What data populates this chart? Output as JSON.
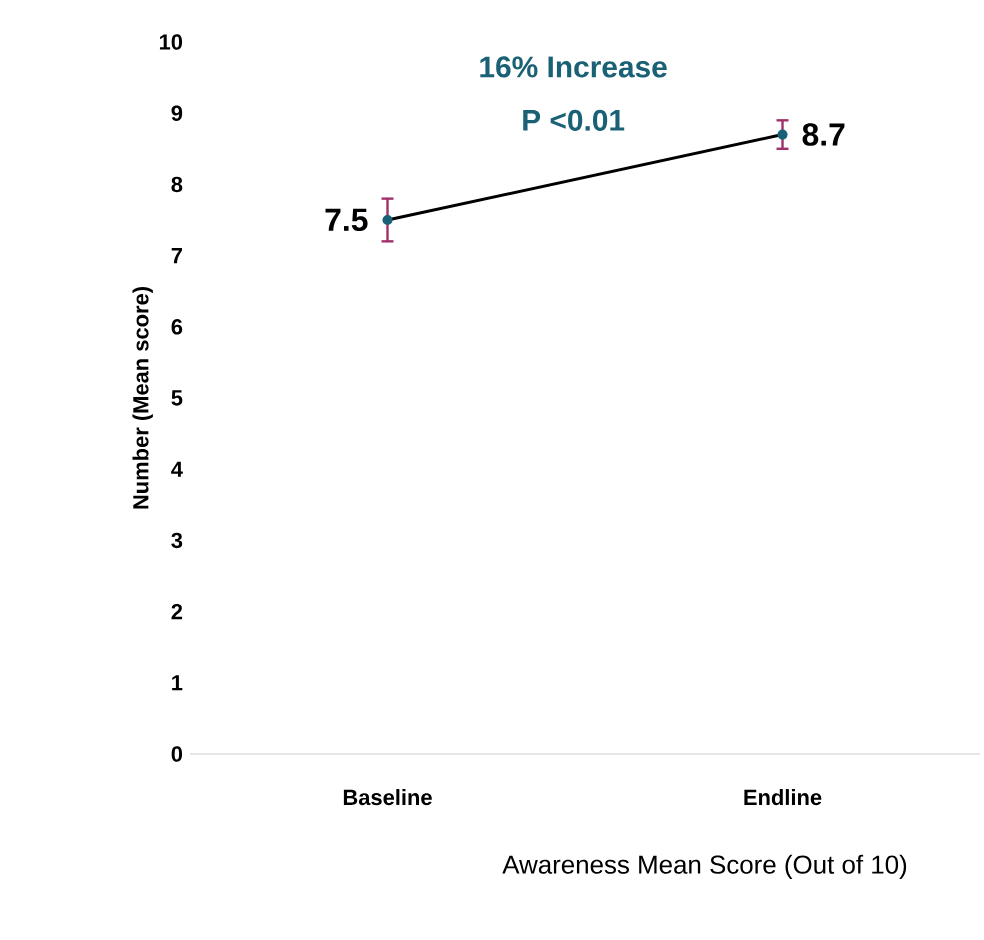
{
  "chart_data": {
    "type": "line",
    "xlabel": "Awareness Mean Score (Out of 10)",
    "ylabel": "Number (Mean score)",
    "categories": [
      "Baseline",
      "Endline"
    ],
    "series": [
      {
        "color": "#000000",
        "values": [
          7.5,
          8.7
        ],
        "errors": [
          0.3,
          0.2
        ]
      }
    ],
    "ylim": [
      0,
      10
    ],
    "yticks": [
      0,
      1,
      2,
      3,
      4,
      5,
      6,
      7,
      8,
      9,
      10
    ],
    "annotations": [
      "16% Increase",
      "P <0.01"
    ],
    "data_labels": true,
    "marker": "circle",
    "grid": false
  }
}
